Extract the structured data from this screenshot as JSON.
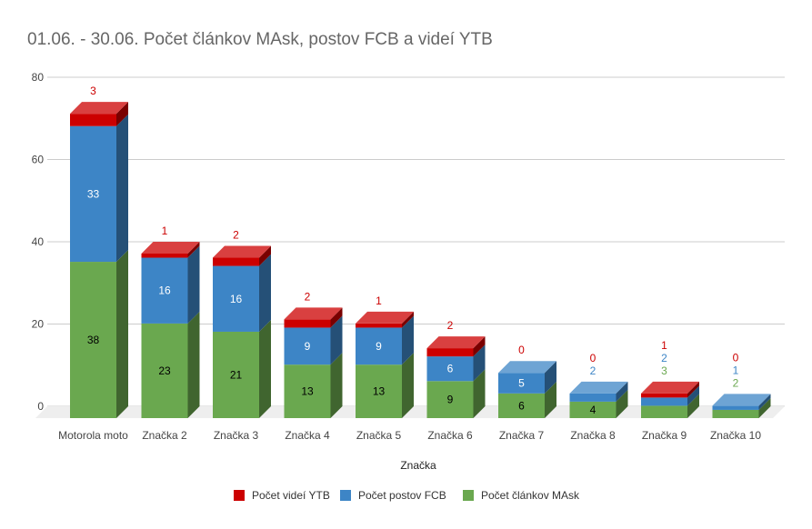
{
  "chart_data": {
    "type": "bar",
    "stacked": true,
    "three_d": true,
    "title": "01.06. - 30.06. Počet článkov MAsk, postov FCB a videí YTB",
    "xlabel": "Značka",
    "ylabel": "",
    "ylim": [
      0,
      80
    ],
    "yticks": [
      0,
      20,
      40,
      60,
      80
    ],
    "grid": true,
    "legend_position": "bottom",
    "categories": [
      "Motorola moto",
      "Značka 2",
      "Značka 3",
      "Značka 4",
      "Značka 5",
      "Značka 6",
      "Značka 7",
      "Značka 8",
      "Značka 9",
      "Značka 10"
    ],
    "series": [
      {
        "name": "Počet článkov MAsk",
        "color": "#6aa84f",
        "label_color": "#000000",
        "values": [
          38,
          23,
          21,
          13,
          13,
          9,
          6,
          4,
          3,
          2
        ]
      },
      {
        "name": "Počet postov FCB",
        "color": "#3d85c6",
        "label_color": "#ffffff",
        "values": [
          33,
          16,
          16,
          9,
          9,
          6,
          5,
          2,
          2,
          1
        ]
      },
      {
        "name": "Počet videí YTB",
        "color": "#cc0000",
        "label_color": "#cc0000",
        "values": [
          3,
          1,
          2,
          2,
          1,
          2,
          0,
          0,
          1,
          0
        ]
      }
    ],
    "legend_order": [
      "Počet videí YTB",
      "Počet postov FCB",
      "Počet článkov MAsk"
    ]
  }
}
